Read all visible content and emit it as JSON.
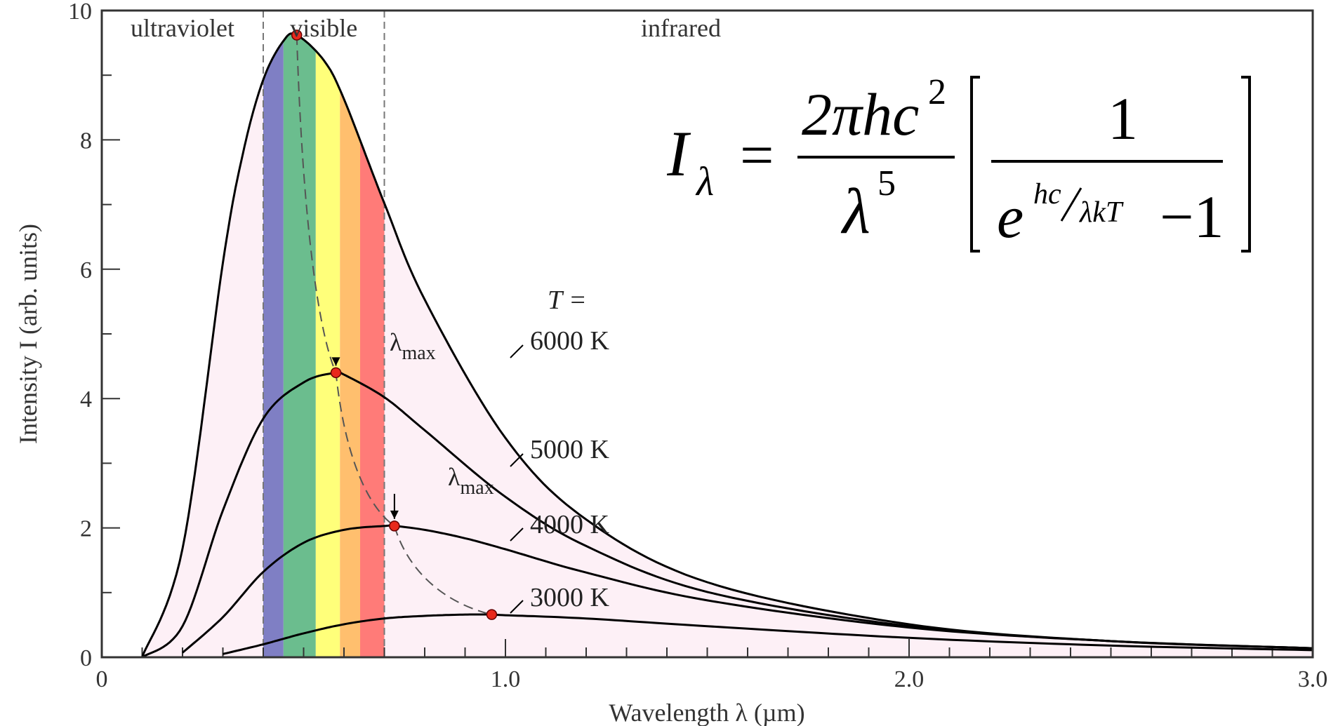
{
  "chart_data": {
    "type": "line",
    "title": "",
    "xlabel": "Wavelength  λ  (µm)",
    "ylabel": "Intensity  I  (arb. units)",
    "xlim": [
      0,
      3.0
    ],
    "ylim": [
      0,
      10
    ],
    "x_ticks": [
      {
        "value": 0,
        "label": "0"
      },
      {
        "value": 1.0,
        "label": "1.0"
      },
      {
        "value": 2.0,
        "label": "2.0"
      },
      {
        "value": 3.0,
        "label": "3.0"
      }
    ],
    "y_ticks": [
      {
        "value": 0,
        "label": "0"
      },
      {
        "value": 2,
        "label": "2"
      },
      {
        "value": 4,
        "label": "4"
      },
      {
        "value": 6,
        "label": "6"
      },
      {
        "value": 8,
        "label": "8"
      },
      {
        "value": 10,
        "label": "10"
      }
    ],
    "x_minor_step": 0.1,
    "y_minor_step": 1,
    "regions": [
      {
        "label": "ultraviolet",
        "from": 0.0,
        "to": 0.4
      },
      {
        "label": "visible",
        "from": 0.4,
        "to": 0.7
      },
      {
        "label": "infrared",
        "from": 0.7,
        "to": 3.0
      }
    ],
    "spectrum_bands": [
      {
        "from": 0.4,
        "to": 0.45,
        "color": "#7f7fc4"
      },
      {
        "from": 0.45,
        "to": 0.53,
        "color": "#6bbd8e"
      },
      {
        "from": 0.53,
        "to": 0.59,
        "color": "#ffff7a"
      },
      {
        "from": 0.59,
        "to": 0.64,
        "color": "#ffbf6e"
      },
      {
        "from": 0.64,
        "to": 0.7,
        "color": "#ff7b78"
      }
    ],
    "fill_color": "#fdf0f6",
    "series": [
      {
        "name": "6000 K",
        "temperature": 6000,
        "x": [
          0.1,
          0.2,
          0.3,
          0.35,
          0.4,
          0.45,
          0.483,
          0.55,
          0.6,
          0.7,
          0.8,
          1.0,
          1.2,
          1.5,
          2.0,
          2.5,
          3.0
        ],
        "values": [
          0.004,
          1.68,
          6.1,
          7.8,
          8.93,
          9.53,
          9.62,
          9.23,
          8.63,
          7.02,
          5.53,
          3.39,
          2.13,
          1.16,
          0.51,
          0.25,
          0.14
        ],
        "peak": {
          "x": 0.483,
          "y": 9.62
        }
      },
      {
        "name": "5000 K",
        "temperature": 5000,
        "x": [
          0.1,
          0.2,
          0.3,
          0.4,
          0.5,
          0.58,
          0.6,
          0.7,
          0.8,
          1.0,
          1.2,
          1.5,
          2.0,
          2.5,
          3.0
        ],
        "values": [
          0.0,
          0.48,
          2.27,
          3.69,
          4.25,
          4.4,
          4.37,
          4.02,
          3.51,
          2.48,
          1.72,
          1.01,
          0.48,
          0.25,
          0.14
        ],
        "peak": {
          "x": 0.58,
          "y": 4.4
        }
      },
      {
        "name": "4000 K",
        "temperature": 4000,
        "x": [
          0.2,
          0.3,
          0.4,
          0.5,
          0.6,
          0.7,
          0.725,
          0.8,
          0.9,
          1.0,
          1.2,
          1.5,
          2.0,
          2.5,
          3.0
        ],
        "values": [
          0.07,
          0.62,
          1.32,
          1.77,
          1.97,
          2.03,
          2.03,
          1.97,
          1.84,
          1.67,
          1.31,
          0.88,
          0.46,
          0.25,
          0.14
        ],
        "peak": {
          "x": 0.725,
          "y": 2.03
        }
      },
      {
        "name": "3000 K",
        "temperature": 3000,
        "x": [
          0.3,
          0.4,
          0.5,
          0.6,
          0.7,
          0.8,
          0.9,
          0.966,
          1.0,
          1.2,
          1.5,
          2.0,
          2.5,
          3.0
        ],
        "values": [
          0.05,
          0.2,
          0.37,
          0.51,
          0.6,
          0.64,
          0.66,
          0.66,
          0.65,
          0.6,
          0.48,
          0.3,
          0.18,
          0.11
        ],
        "peak": {
          "x": 0.966,
          "y": 0.66
        }
      }
    ],
    "series_labels": {
      "T_prefix": "T =",
      "6000 K": "6000 K",
      "5000 K": "5000 K",
      "4000 K": "4000 K",
      "3000 K": "3000 K"
    },
    "annotations": [
      {
        "text": "λmax",
        "base": "λ",
        "sub": "max",
        "points_to": "6000 K"
      },
      {
        "text": "λmax",
        "base": "λ",
        "sub": "max",
        "points_to": "4000 K"
      }
    ],
    "wien_locus": "dashed curve through peaks",
    "peak_marker_color": "#e8291c",
    "legend": "labels placed on curves"
  },
  "formula": {
    "lhs": "I",
    "lhs_sub": "λ",
    "numerator": "2πhc",
    "numerator_sup": "2",
    "denominator": "λ",
    "denominator_sup": "5",
    "bracket_numerator": "1",
    "exp_base": "e",
    "exp_num": "hc",
    "exp_den": "λkT",
    "minus_one": "−1"
  }
}
